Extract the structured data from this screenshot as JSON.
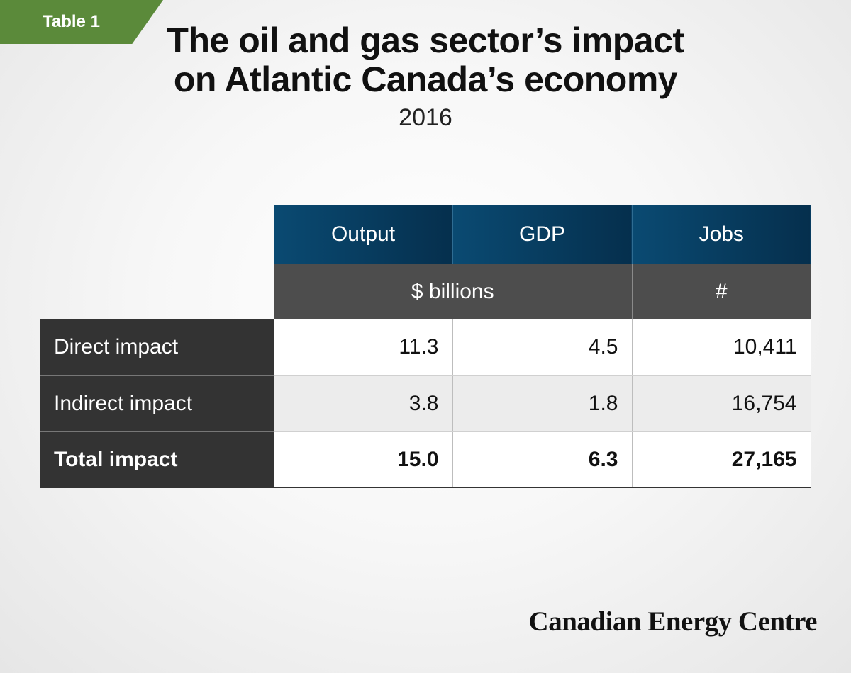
{
  "tag": "Table 1",
  "title_lines": [
    "The oil and gas sector’s impact",
    "on Atlantic Canada’s economy"
  ],
  "subtitle": "2016",
  "chart_data": {
    "type": "table",
    "columns": [
      "Output",
      "GDP",
      "Jobs"
    ],
    "units": [
      "$ billions",
      "#"
    ],
    "rows": [
      {
        "label": "Direct impact",
        "values": [
          "11.3",
          "4.5",
          "10,411"
        ]
      },
      {
        "label": "Indirect impact",
        "values": [
          "3.8",
          "1.8",
          "16,754"
        ]
      },
      {
        "label": "Total impact",
        "values": [
          "15.0",
          "6.3",
          "27,165"
        ]
      }
    ]
  },
  "brand": "Canadian Energy Centre",
  "colors": {
    "tag_green": "#5b8a3a",
    "header_blue": "#073a5c",
    "unit_gray": "#4d4d4d",
    "label_dark": "#333333"
  }
}
